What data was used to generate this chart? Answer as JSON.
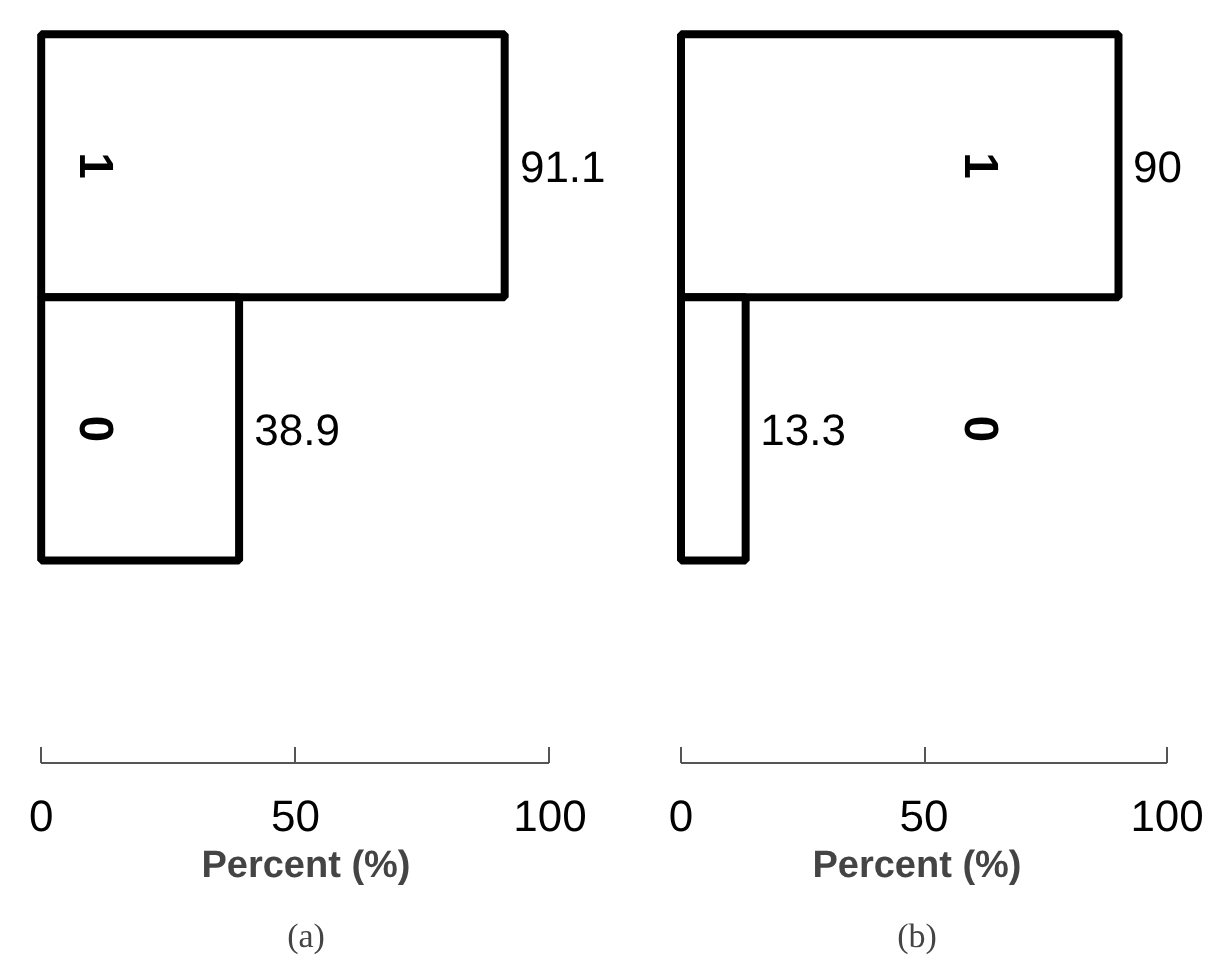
{
  "chart_data": [
    {
      "type": "bar",
      "orientation": "horizontal",
      "categories": [
        "1",
        "0"
      ],
      "values": [
        91.1,
        38.9
      ],
      "color": "#ffffff",
      "xlim": [
        0,
        100
      ],
      "xticks": [
        0,
        50,
        100
      ],
      "xlabel": "Percent (%)",
      "data_labels": true,
      "tick_labels": "x",
      "grid": false,
      "annotations": [
        "(a)"
      ]
    },
    {
      "type": "bar",
      "orientation": "horizontal",
      "categories": [
        "1",
        "0"
      ],
      "values": [
        90,
        13.3
      ],
      "color": "#ffffff",
      "xlim": [
        0,
        100
      ],
      "xticks": [
        0,
        50,
        100
      ],
      "xlabel": "Percent (%)",
      "data_labels": true,
      "tick_labels": "x",
      "grid": false,
      "annotations": [
        "(b)"
      ]
    }
  ]
}
